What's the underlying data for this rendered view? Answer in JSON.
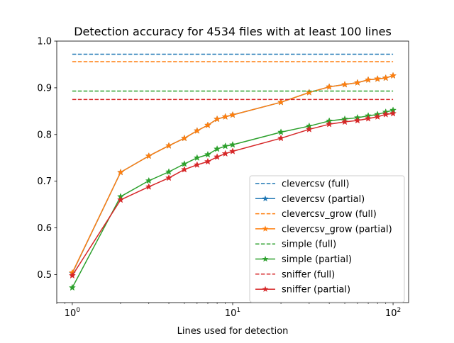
{
  "chart_data": {
    "type": "line",
    "title": "Detection accuracy for 4534 files with at least 100 lines",
    "xlabel": "Lines used for detection",
    "ylabel": "",
    "xscale": "log",
    "xlim": [
      0.8,
      125
    ],
    "ylim": [
      0.44,
      1.0
    ],
    "xticks": [
      {
        "value": 1,
        "base": "10",
        "exp": "0"
      },
      {
        "value": 10,
        "base": "10",
        "exp": "1"
      },
      {
        "value": 100,
        "base": "10",
        "exp": "2"
      }
    ],
    "yticks": [
      0.5,
      0.6,
      0.7,
      0.8,
      0.9,
      1.0
    ],
    "ytick_labels": [
      "0.5",
      "0.6",
      "0.7",
      "0.8",
      "0.9",
      "1.0"
    ],
    "grid": false,
    "legend_position": "lower-right",
    "series": [
      {
        "name": "clevercsv (full)",
        "color": "#1f77b4",
        "style": "dashed",
        "x": [
          1,
          100
        ],
        "values": [
          0.972,
          0.972
        ]
      },
      {
        "name": "clevercsv (partial)",
        "color": "#1f77b4",
        "style": "solid-star",
        "x": [
          1,
          2,
          3,
          4,
          5,
          6,
          7,
          8,
          9,
          10,
          20,
          30,
          40,
          50,
          60,
          70,
          80,
          90,
          100
        ],
        "values": [
          0.503,
          0.719,
          0.754,
          0.776,
          0.792,
          0.808,
          0.82,
          0.833,
          0.838,
          0.842,
          0.869,
          0.89,
          0.902,
          0.907,
          0.911,
          0.917,
          0.919,
          0.921,
          0.926
        ]
      },
      {
        "name": "clevercsv_grow (full)",
        "color": "#ff7f0e",
        "style": "dashed",
        "x": [
          1,
          100
        ],
        "values": [
          0.956,
          0.956
        ]
      },
      {
        "name": "clevercsv_grow (partial)",
        "color": "#ff7f0e",
        "style": "solid-star",
        "x": [
          1,
          2,
          3,
          4,
          5,
          6,
          7,
          8,
          9,
          10,
          20,
          30,
          40,
          50,
          60,
          70,
          80,
          90,
          100
        ],
        "values": [
          0.504,
          0.719,
          0.754,
          0.776,
          0.792,
          0.808,
          0.82,
          0.833,
          0.838,
          0.842,
          0.869,
          0.89,
          0.902,
          0.907,
          0.911,
          0.917,
          0.919,
          0.921,
          0.926
        ]
      },
      {
        "name": "simple (full)",
        "color": "#2ca02c",
        "style": "dashed",
        "x": [
          1,
          100
        ],
        "values": [
          0.893,
          0.893
        ]
      },
      {
        "name": "simple (partial)",
        "color": "#2ca02c",
        "style": "solid-star",
        "x": [
          1,
          2,
          3,
          4,
          5,
          6,
          7,
          8,
          9,
          10,
          20,
          30,
          40,
          50,
          60,
          70,
          80,
          90,
          100
        ],
        "values": [
          0.472,
          0.667,
          0.701,
          0.72,
          0.737,
          0.75,
          0.757,
          0.769,
          0.775,
          0.778,
          0.805,
          0.818,
          0.829,
          0.833,
          0.836,
          0.84,
          0.843,
          0.848,
          0.852
        ]
      },
      {
        "name": "sniffer (full)",
        "color": "#d62728",
        "style": "dashed",
        "x": [
          1,
          100
        ],
        "values": [
          0.875,
          0.875
        ]
      },
      {
        "name": "sniffer (partial)",
        "color": "#d62728",
        "style": "solid-star",
        "x": [
          1,
          2,
          3,
          4,
          5,
          6,
          7,
          8,
          9,
          10,
          20,
          30,
          40,
          50,
          60,
          70,
          80,
          90,
          100
        ],
        "values": [
          0.498,
          0.66,
          0.688,
          0.707,
          0.725,
          0.735,
          0.742,
          0.752,
          0.759,
          0.764,
          0.792,
          0.811,
          0.822,
          0.827,
          0.83,
          0.834,
          0.838,
          0.843,
          0.845
        ]
      }
    ]
  }
}
